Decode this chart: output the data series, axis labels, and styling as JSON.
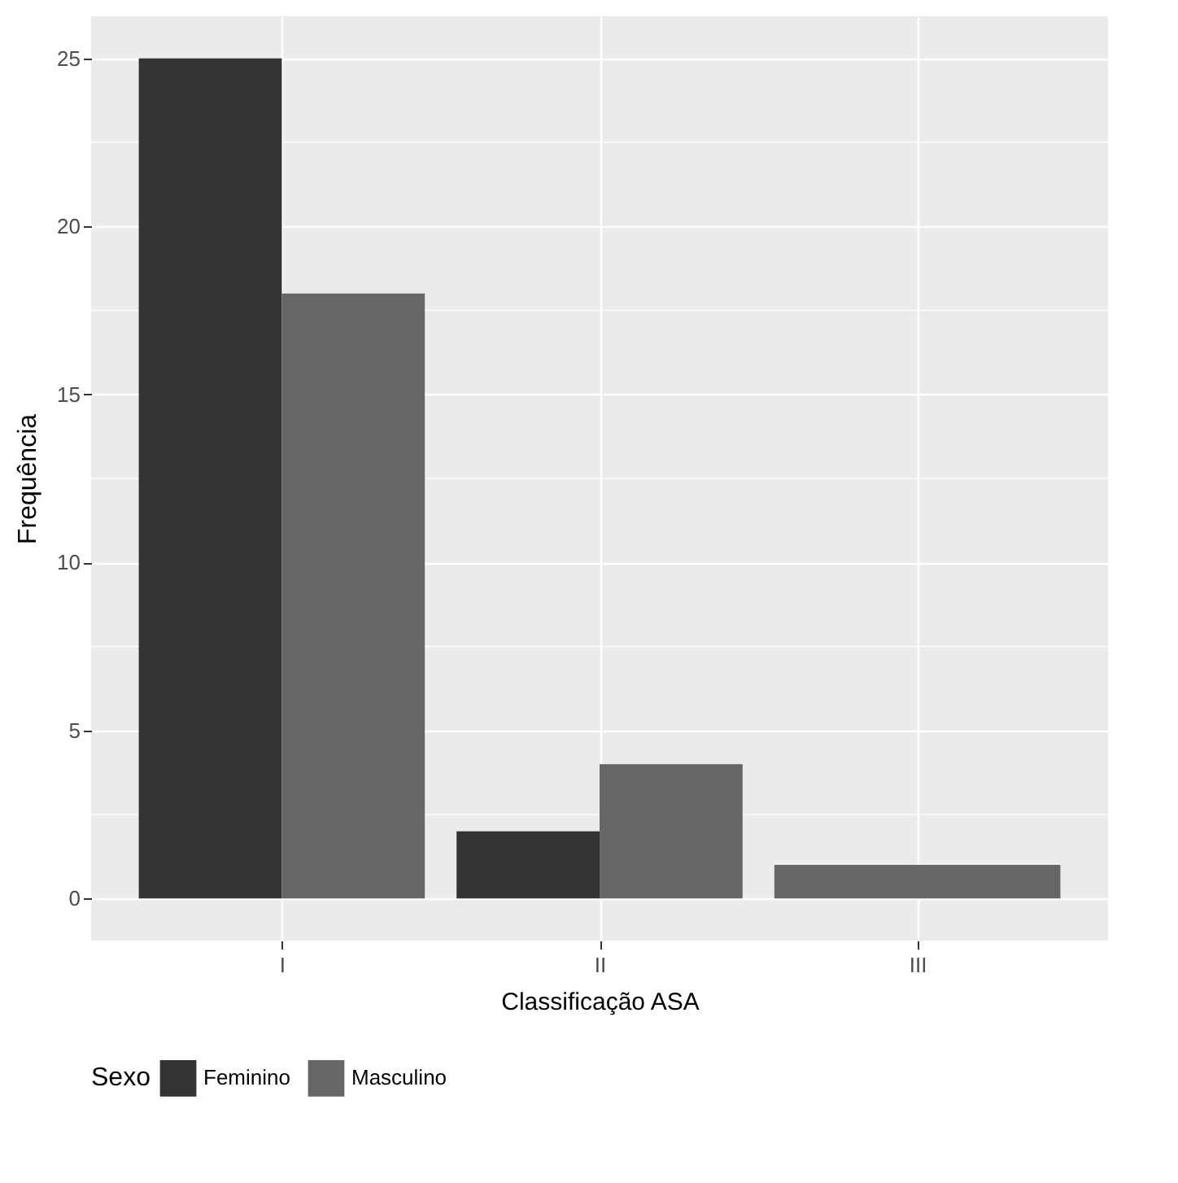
{
  "chart_data": {
    "type": "bar",
    "xlabel": "Classificação ASA",
    "ylabel": "Frequência",
    "legend_title": "Sexo",
    "legend": "bottom",
    "grid": true,
    "categories": [
      "I",
      "II",
      "III"
    ],
    "series": [
      {
        "name": "Feminino",
        "color": "#333333",
        "values": [
          25,
          2,
          null
        ]
      },
      {
        "name": "Masculino",
        "color": "#666666",
        "values": [
          18,
          4,
          1
        ]
      }
    ],
    "ylim": [
      -1.25,
      26.25
    ],
    "yticks": [
      0,
      5,
      10,
      15,
      20,
      25
    ]
  }
}
